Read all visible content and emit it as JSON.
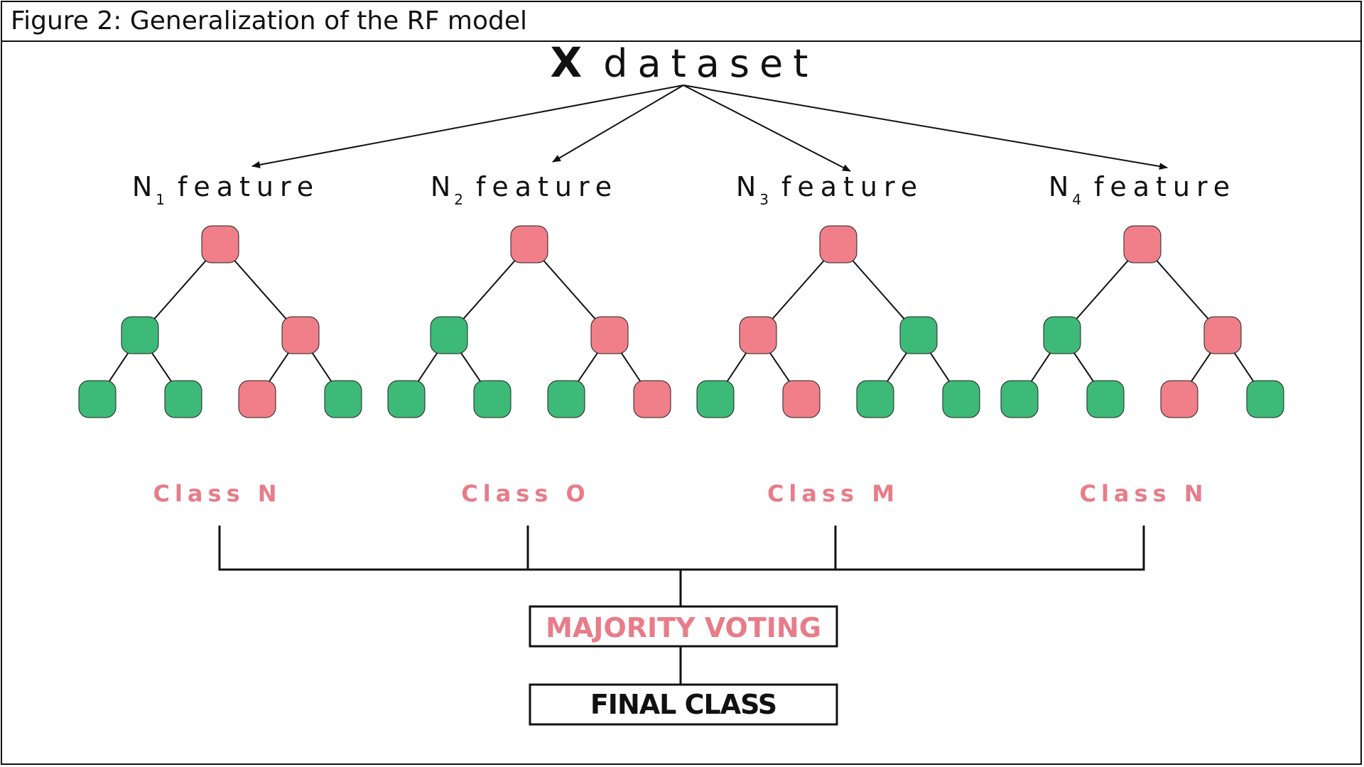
{
  "caption": "Figure 2: Generalization of the RF model",
  "dataset": {
    "x": "X",
    "label": "dataset"
  },
  "features": [
    {
      "prefix": "N",
      "sub": "1",
      "label": "feature"
    },
    {
      "prefix": "N",
      "sub": "2",
      "label": "feature"
    },
    {
      "prefix": "N",
      "sub": "3",
      "label": "feature"
    },
    {
      "prefix": "N",
      "sub": "4",
      "label": "feature"
    }
  ],
  "trees": [
    {
      "root": "pink",
      "level1": [
        "green",
        "pink"
      ],
      "leaves": [
        "green",
        "green",
        "pink",
        "green"
      ],
      "class_label": "Class N"
    },
    {
      "root": "pink",
      "level1": [
        "green",
        "pink"
      ],
      "leaves": [
        "green",
        "green",
        "green",
        "pink"
      ],
      "class_label": "Class O"
    },
    {
      "root": "pink",
      "level1": [
        "pink",
        "green"
      ],
      "leaves": [
        "green",
        "pink",
        "green",
        "green"
      ],
      "class_label": "Class M"
    },
    {
      "root": "pink",
      "level1": [
        "green",
        "pink"
      ],
      "leaves": [
        "green",
        "green",
        "pink",
        "green"
      ],
      "class_label": "Class N"
    }
  ],
  "voting_label": "MAJORITY VOTING",
  "final_label": "FINAL CLASS",
  "colors": {
    "pink": "#f07f89",
    "green": "#3dba77",
    "accent_text": "#e87c89",
    "line": "#111111"
  }
}
